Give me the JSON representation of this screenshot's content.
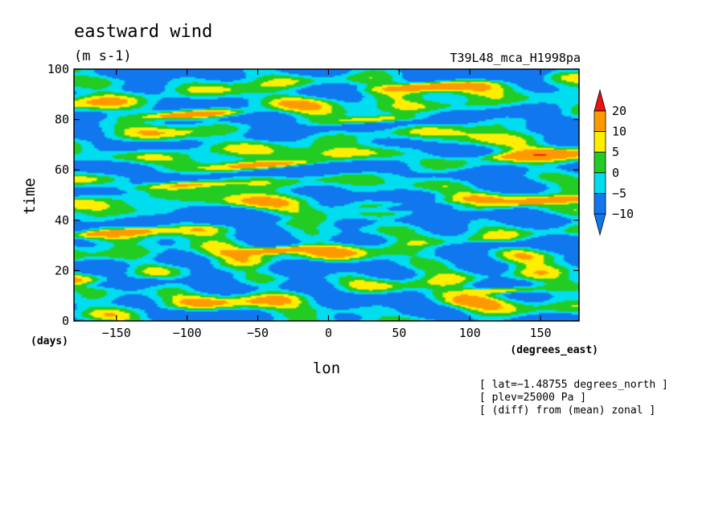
{
  "chart_data": {
    "type": "heatmap",
    "title": "eastward wind",
    "units": "(m s-1)",
    "run_label": "T39L48_mca_H1998pa",
    "xlabel": "lon",
    "ylabel": "time",
    "x_units": "(degrees_east)",
    "y_units": "(days)",
    "xlim": [
      -180,
      177.2
    ],
    "ylim": [
      0,
      100
    ],
    "x_ticks": [
      -150,
      -100,
      -50,
      0,
      50,
      100,
      150
    ],
    "y_ticks": [
      0,
      20,
      40,
      60,
      80,
      100
    ],
    "x_tick_labels": [
      "−150",
      "−100",
      "−50",
      "0",
      "50",
      "100",
      "150"
    ],
    "y_tick_labels": [
      "0",
      "20",
      "40",
      "60",
      "80",
      "100"
    ],
    "colorbar": {
      "levels": [
        20,
        10,
        5,
        0,
        -5,
        -10
      ],
      "level_labels": [
        "20",
        "10",
        "5",
        "0",
        "−5",
        "−10"
      ],
      "colors_high_to_low": [
        "#ee1111",
        "#ff9900",
        "#ffee00",
        "#22cc22",
        "#00ddee",
        "#1177ee"
      ],
      "extend": "both"
    },
    "colors": {
      "below_-10": "#1177ee",
      "-10_to_-5": "#1177ee",
      "-5_to_0": "#00ddee",
      "0_to_5": "#22cc22",
      "5_to_10": "#ffee00",
      "10_to_20": "#ff9900",
      "above_20": "#ee1111"
    },
    "annotations": [
      "[ lat=−1.48755 degrees_north ]",
      "[ plev=25000 Pa ]",
      "[ (diff) from (mean) zonal ]"
    ],
    "features": [
      {
        "lon": -95,
        "time": 82,
        "value": 24
      },
      {
        "lon": -45,
        "time": 62,
        "value": 22
      },
      {
        "lon": 70,
        "time": 93,
        "value": 22
      },
      {
        "lon": 150,
        "time": 66,
        "value": 21
      },
      {
        "lon": 160,
        "time": 48,
        "value": 21
      },
      {
        "lon": -150,
        "time": 35,
        "value": 21
      },
      {
        "lon": -35,
        "time": 28,
        "value": 22
      },
      {
        "lon": -100,
        "time": 54,
        "value": 15
      },
      {
        "lon": 30,
        "time": 80,
        "value": 13
      },
      {
        "lon": 120,
        "time": 12,
        "value": 14
      },
      {
        "lon": 60,
        "time": 45,
        "value": -12
      },
      {
        "lon": 110,
        "time": 30,
        "value": -12
      },
      {
        "lon": -60,
        "time": 40,
        "value": -11
      },
      {
        "lon": 0,
        "time": 60,
        "value": -12
      },
      {
        "lon": -140,
        "time": 15,
        "value": -11
      }
    ]
  }
}
